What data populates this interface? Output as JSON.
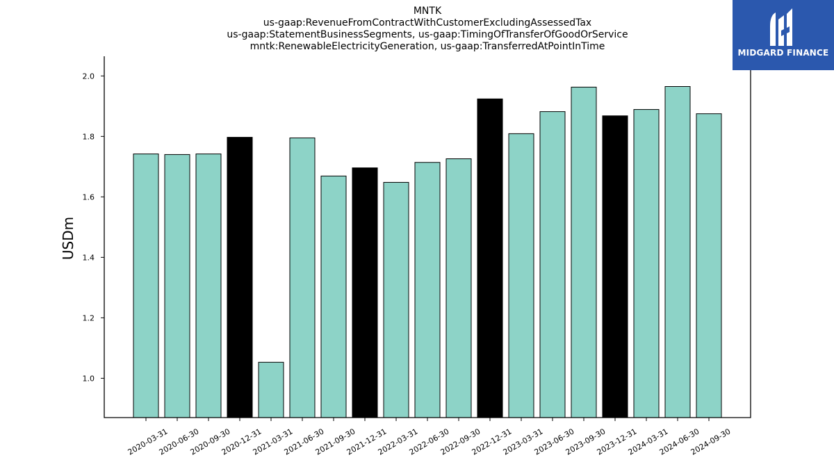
{
  "chart_data": {
    "type": "bar",
    "title": [
      "MNTK",
      "us-gaap:RevenueFromContractWithCustomerExcludingAssessedTax",
      "us-gaap:StatementBusinessSegments, us-gaap:TimingOfTransferOfGoodOrService",
      "mntk:RenewableElectricityGeneration, us-gaap:TransferredAtPointInTime"
    ],
    "ylabel": "USDm",
    "xlabel": "",
    "ylim": [
      0.87,
      2.065
    ],
    "yticks": [
      "1.0",
      "1.2",
      "1.4",
      "1.6",
      "1.8",
      "2.0"
    ],
    "categories": [
      "2020-03-31",
      "2020-06-30",
      "2020-09-30",
      "2020-12-31",
      "2021-03-31",
      "2021-06-30",
      "2021-09-30",
      "2021-12-31",
      "2022-03-31",
      "2022-06-30",
      "2022-09-30",
      "2022-12-31",
      "2023-03-31",
      "2023-06-30",
      "2023-09-30",
      "2023-12-31",
      "2024-03-31",
      "2024-06-30",
      "2024-09-30"
    ],
    "values": [
      1.742,
      1.74,
      1.742,
      1.797,
      1.053,
      1.795,
      1.669,
      1.696,
      1.648,
      1.714,
      1.726,
      1.924,
      1.809,
      1.882,
      1.963,
      1.868,
      1.889,
      1.965,
      1.875
    ],
    "highlight_quarter_end": "12-31",
    "colors": {
      "default": "#8dd3c7",
      "highlight": "#000000",
      "edge": "#000000"
    },
    "grid": false
  },
  "logo": {
    "text": "MIDGARD FINANCE"
  }
}
